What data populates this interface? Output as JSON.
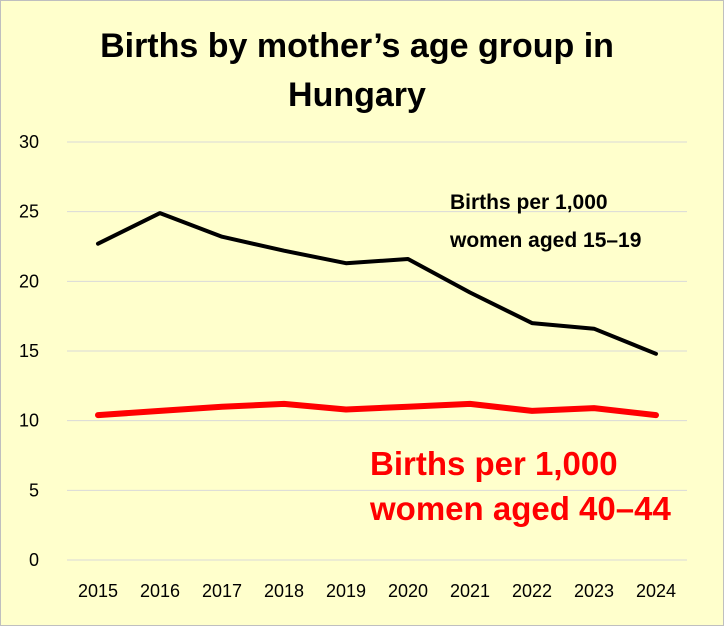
{
  "chart_data": {
    "type": "line",
    "title_lines": [
      "Births by mother’s age group in",
      "Hungary"
    ],
    "xlabel": "",
    "ylabel": "",
    "categories": [
      "2015",
      "2016",
      "2017",
      "2018",
      "2019",
      "2020",
      "2021",
      "2022",
      "2023",
      "2024"
    ],
    "yticks": [
      "0",
      "5",
      "10",
      "15",
      "20",
      "25",
      "30"
    ],
    "ylim": [
      0,
      30
    ],
    "grid": true,
    "background_color": "#ffffcc",
    "series": [
      {
        "name": "Births per 1,000 women aged 15–19",
        "label_lines": [
          "Births per 1,000",
          "women aged 15–19"
        ],
        "color": "#000000",
        "values": [
          22.7,
          24.9,
          23.2,
          22.2,
          21.3,
          21.6,
          19.2,
          17.0,
          16.6,
          14.8
        ]
      },
      {
        "name": "Births per 1,000 women aged 40–44",
        "label_lines": [
          "Births per 1,000",
          "women aged 40–44"
        ],
        "color": "#ff0000",
        "values": [
          10.4,
          10.7,
          11.0,
          11.2,
          10.8,
          11.0,
          11.2,
          10.7,
          10.9,
          10.4
        ]
      }
    ]
  }
}
